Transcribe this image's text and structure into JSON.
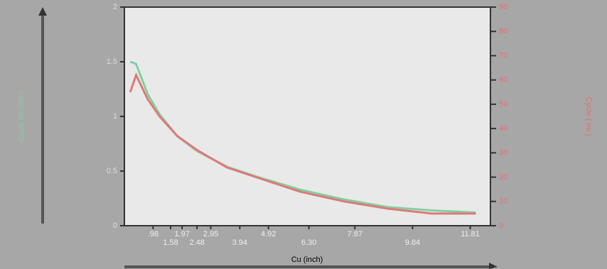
{
  "chart_data": {
    "type": "line",
    "x_label": "Cu (inch)",
    "y_label": "Cycle (in ohm)",
    "y2_label": "Cycle ( mi )",
    "x": [
      0.2,
      0.4,
      0.8,
      1.2,
      1.8,
      2.5,
      3.5,
      4.5,
      6,
      7.5,
      9,
      10.5,
      12
    ],
    "series": [
      {
        "name": "Cycle (in ohm)",
        "color": "#7fd0a0",
        "values": [
          1.5,
          1.48,
          1.2,
          1.02,
          0.82,
          0.68,
          0.54,
          0.45,
          0.33,
          0.24,
          0.17,
          0.14,
          0.12
        ]
      },
      {
        "name": "Cycle ( mi )",
        "color": "#e07878",
        "axis": "y2",
        "values": [
          55,
          62,
          52,
          45,
          37,
          31,
          24,
          20,
          14,
          10,
          7,
          5,
          5
        ]
      }
    ],
    "xlim": [
      0,
      12.5
    ],
    "xticks": [
      {
        "value": 0.98,
        "label": ".98"
      },
      1.58,
      1.97,
      2.48,
      2.95,
      3.94,
      4.92,
      {
        "value": 6.3,
        "label": "6.30"
      },
      7.87,
      9.84,
      11.81
    ],
    "ylim": [
      0,
      2
    ],
    "yticks": [
      0,
      0.5,
      1,
      1.5,
      2
    ],
    "y2lim": [
      0,
      90
    ],
    "y2ticks": [
      0,
      10,
      20,
      30,
      40,
      50,
      60,
      70,
      80,
      90
    ],
    "axis_color": "#333333",
    "left_color": "#8fc8a0",
    "right_color": "#e07070"
  }
}
